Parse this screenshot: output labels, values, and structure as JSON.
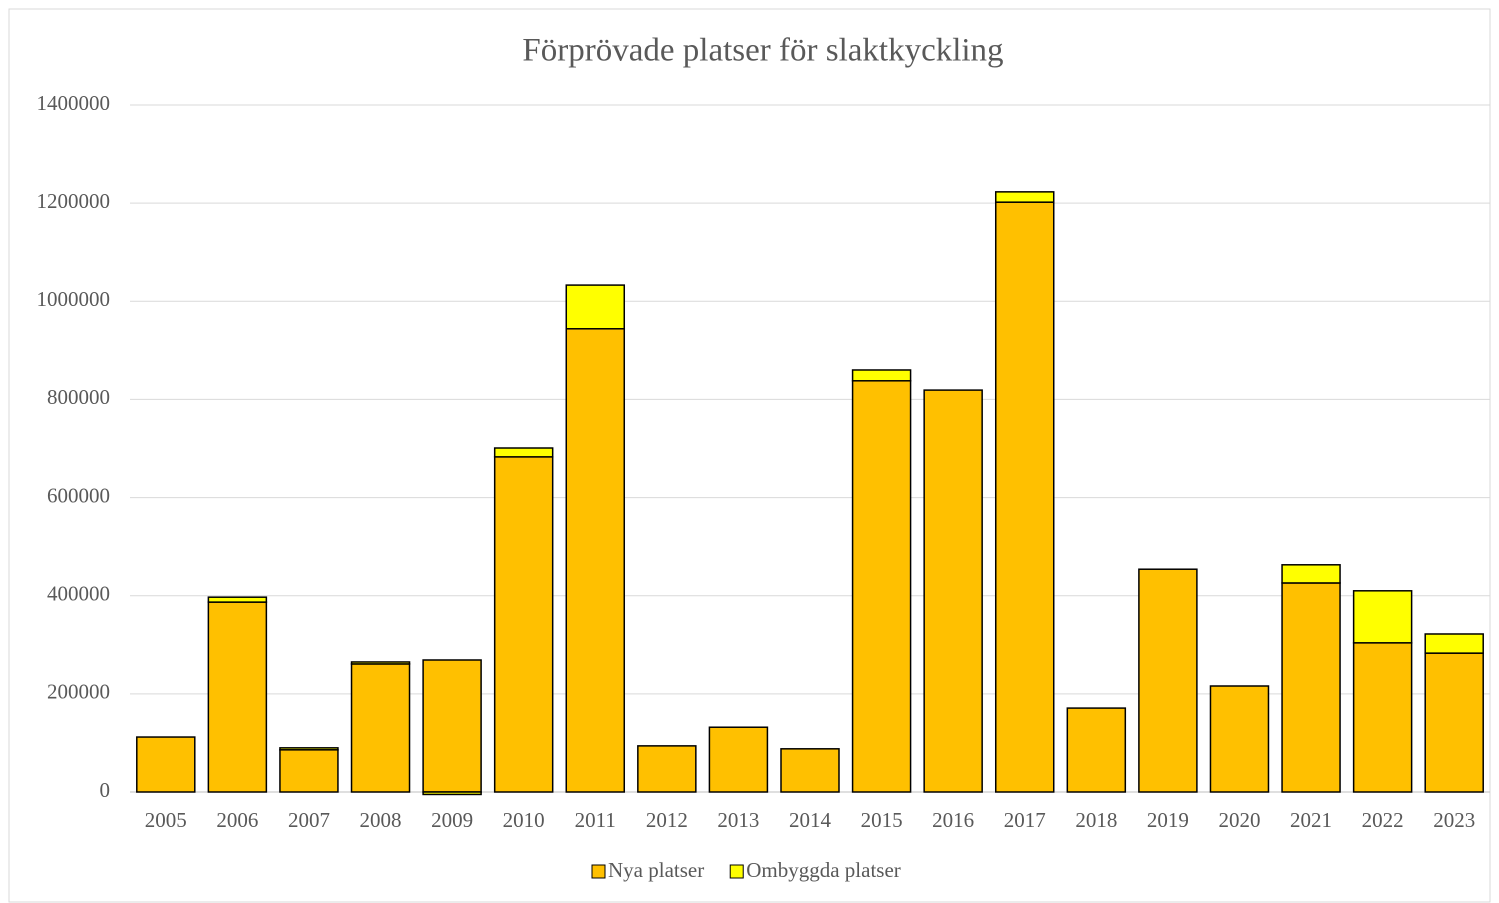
{
  "chart_data": {
    "type": "stacked_bar",
    "title": "Förprövade platser för slaktkyckling",
    "categories": [
      "2005",
      "2006",
      "2007",
      "2008",
      "2009",
      "2010",
      "2011",
      "2012",
      "2013",
      "2014",
      "2015",
      "2016",
      "2017",
      "2018",
      "2019",
      "2020",
      "2021",
      "2022",
      "2023"
    ],
    "series": [
      {
        "name": "Nya platser",
        "color": "#ffc000",
        "values": [
          112000,
          387000,
          86000,
          261000,
          269000,
          683000,
          944000,
          94000,
          132000,
          88000,
          838000,
          819000,
          1202000,
          171000,
          454000,
          216000,
          426000,
          304000,
          283000
        ]
      },
      {
        "name": "Ombyggda platser",
        "color": "#ffff00",
        "values": [
          0,
          10000,
          4000,
          4000,
          -5000,
          18000,
          89000,
          0,
          0,
          0,
          22000,
          0,
          21000,
          0,
          0,
          0,
          37000,
          106000,
          39000
        ]
      }
    ],
    "ylim": [
      0,
      1400000
    ],
    "yticks": [
      0,
      200000,
      400000,
      600000,
      800000,
      1000000,
      1200000,
      1400000
    ],
    "grid": true,
    "legend": "bottom"
  }
}
